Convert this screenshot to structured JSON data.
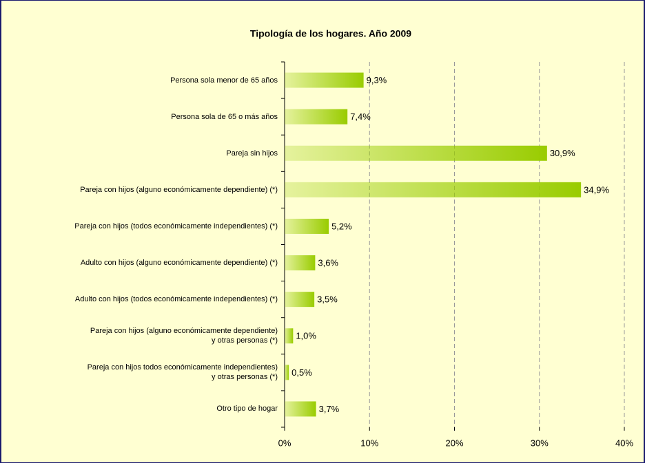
{
  "chart_data": {
    "type": "bar",
    "orientation": "horizontal",
    "title": "Tipología de los hogares. Año 2009",
    "categories": [
      "Persona sola menor de 65 años",
      "Persona sola de 65 o más años",
      "Pareja sin hijos",
      "Pareja con hijos (alguno económicamente dependiente) (*)",
      "Pareja con hijos (todos económicamente independientes) (*)",
      "Adulto con hijos  (alguno económicamente dependiente)  (*)",
      "Adulto con hijos (todos económicamente independientes) (*)",
      "Pareja con hijos (alguno económicamente dependiente)\ny otras personas (*)",
      "Pareja con hijos todos económicamente independientes)\ny otras personas (*)",
      "Otro tipo de hogar"
    ],
    "values": [
      9.3,
      7.4,
      30.9,
      34.9,
      5.2,
      3.6,
      3.5,
      1.0,
      0.5,
      3.7
    ],
    "value_labels": [
      "9,3%",
      "7,4%",
      "30,9%",
      "34,9%",
      "5,2%",
      "3,6%",
      "3,5%",
      "1,0%",
      "0,5%",
      "3,7%"
    ],
    "color": "#99cc00",
    "xlim": [
      0,
      40
    ],
    "xticks": [
      {
        "value": 0,
        "label": "0%"
      },
      {
        "value": 10,
        "label": "10%"
      },
      {
        "value": 20,
        "label": "20%"
      },
      {
        "value": 30,
        "label": "30%"
      },
      {
        "value": 40,
        "label": "40%"
      }
    ],
    "grid": true
  }
}
